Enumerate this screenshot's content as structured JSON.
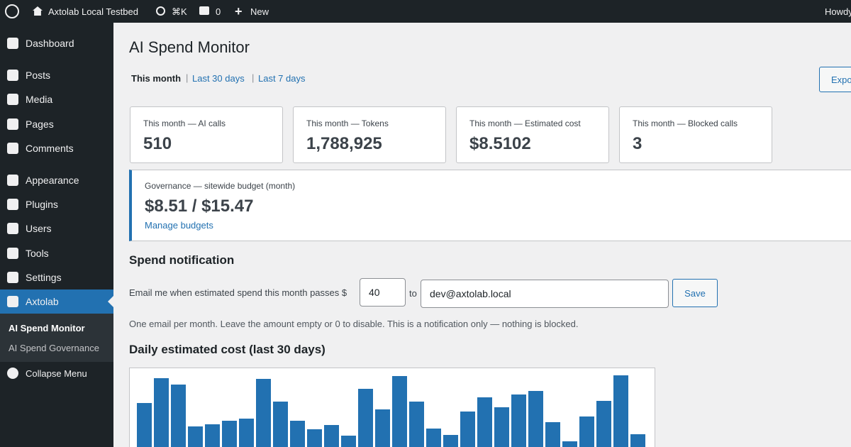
{
  "admin_bar": {
    "site_name": "Axtolab Local Testbed",
    "search_shortcut": "⌘K",
    "comments_count": 0,
    "new": "New",
    "howdy": "Howdy"
  },
  "menu": {
    "items": [
      "Dashboard",
      "Posts",
      "Media",
      "Pages",
      "Comments",
      "Appearance",
      "Plugins",
      "Users",
      "Tools",
      "Settings",
      "Axtolab"
    ],
    "submenu": [
      "AI Spend Monitor",
      "AI Spend Governance"
    ],
    "collapse": "Collapse Menu"
  },
  "page": {
    "title": "AI Spend Monitor",
    "tabs": [
      "This month",
      "Last 30 days",
      "Last 7 days"
    ],
    "export": "Export",
    "cards": [
      {
        "label": "This month — AI calls",
        "value": 510
      },
      {
        "label": "This month — Tokens",
        "value": "1,788,925"
      },
      {
        "label": "This month — Estimated cost",
        "value": "$8.5102"
      },
      {
        "label": "This month — Blocked calls",
        "value": 3
      }
    ],
    "governance": {
      "label": "Governance — sitewide budget (month)",
      "value": "$8.51 / $15.47",
      "link": "Manage budgets"
    },
    "notification": {
      "heading": "Spend notification",
      "label": "Email me when estimated spend this month passes $",
      "threshold": 40,
      "to": "to",
      "email": "dev@axtolab.local",
      "save": "Save",
      "note": "One email per month. Leave the amount empty or 0 to disable. This is a notification only — nothing is blocked."
    }
  },
  "chart_data": {
    "type": "bar",
    "title": "Daily estimated cost (last 30 days)",
    "values": [
      62,
      97,
      88,
      29,
      32,
      37,
      40,
      96,
      64,
      37,
      25,
      31,
      16,
      82,
      53,
      100,
      64,
      26,
      17,
      50,
      70,
      56,
      74,
      79,
      35,
      8,
      43,
      65,
      101,
      18
    ],
    "color": "#2271b1",
    "ylim": [
      0,
      110
    ]
  }
}
